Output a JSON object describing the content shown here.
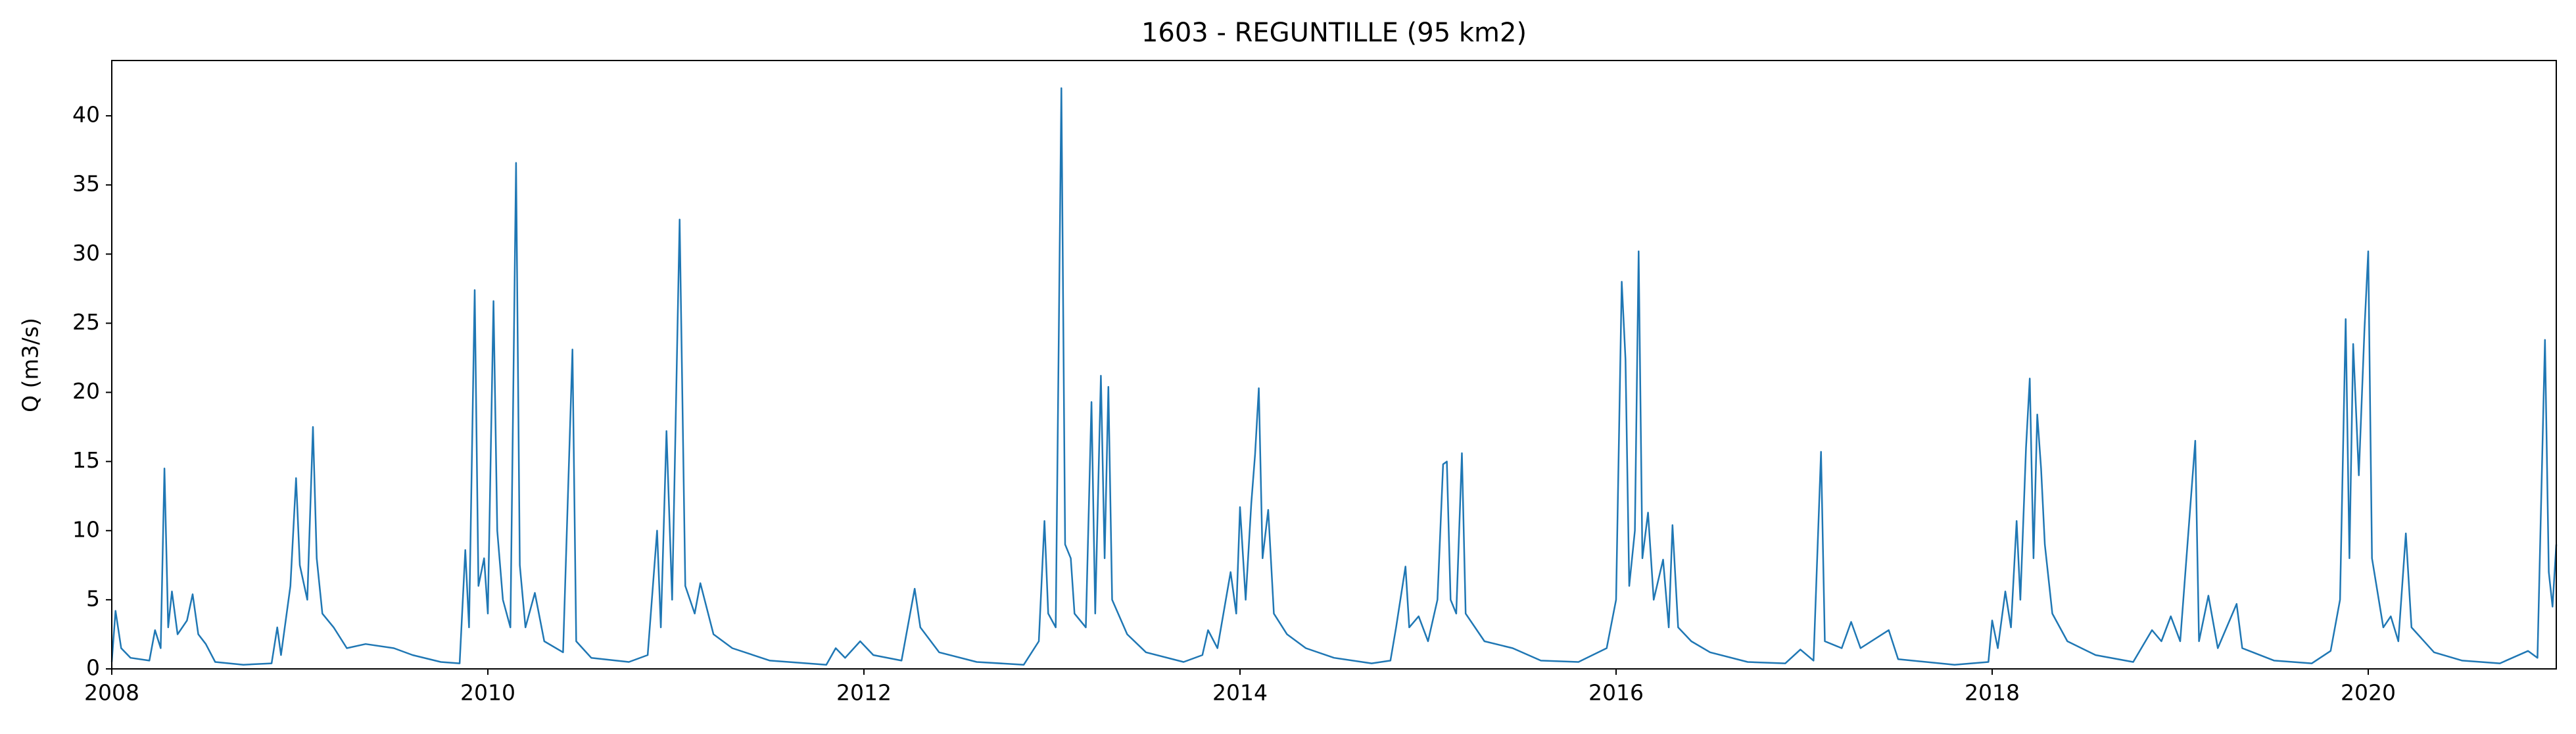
{
  "chart_data": {
    "type": "line",
    "title": "1603 - REGUNTILLE (95 km2)",
    "y_label": "Q (m3/s)",
    "color": "#1f77b4",
    "xlim": [
      2008,
      2021
    ],
    "xticks": [
      2008,
      2010,
      2012,
      2014,
      2016,
      2018,
      2020
    ],
    "ylim": [
      0,
      44
    ],
    "yticks": [
      0,
      5,
      10,
      15,
      20,
      25,
      30,
      35,
      40
    ],
    "x": [
      2008.0,
      2008.02,
      2008.05,
      2008.1,
      2008.2,
      2008.23,
      2008.26,
      2008.28,
      2008.3,
      2008.32,
      2008.35,
      2008.4,
      2008.43,
      2008.46,
      2008.5,
      2008.55,
      2008.7,
      2008.85,
      2008.88,
      2008.9,
      2008.95,
      2008.98,
      2009.0,
      2009.04,
      2009.07,
      2009.09,
      2009.12,
      2009.18,
      2009.25,
      2009.35,
      2009.5,
      2009.6,
      2009.75,
      2009.85,
      2009.88,
      2009.9,
      2009.93,
      2009.95,
      2009.98,
      2010.0,
      2010.03,
      2010.05,
      2010.08,
      2010.12,
      2010.15,
      2010.17,
      2010.2,
      2010.25,
      2010.3,
      2010.4,
      2010.45,
      2010.47,
      2010.55,
      2010.75,
      2010.85,
      2010.9,
      2010.92,
      2010.95,
      2010.98,
      2011.02,
      2011.05,
      2011.1,
      2011.13,
      2011.2,
      2011.3,
      2011.5,
      2011.8,
      2011.85,
      2011.9,
      2011.98,
      2012.05,
      2012.2,
      2012.27,
      2012.3,
      2012.4,
      2012.6,
      2012.85,
      2012.93,
      2012.96,
      2012.98,
      2013.02,
      2013.05,
      2013.07,
      2013.1,
      2013.12,
      2013.18,
      2013.21,
      2013.23,
      2013.26,
      2013.28,
      2013.3,
      2013.32,
      2013.4,
      2013.5,
      2013.7,
      2013.8,
      2013.83,
      2013.88,
      2013.95,
      2013.98,
      2014.0,
      2014.03,
      2014.06,
      2014.08,
      2014.1,
      2014.12,
      2014.15,
      2014.18,
      2014.25,
      2014.35,
      2014.5,
      2014.7,
      2014.8,
      2014.83,
      2014.88,
      2014.9,
      2014.95,
      2015.0,
      2015.05,
      2015.08,
      2015.1,
      2015.12,
      2015.15,
      2015.18,
      2015.2,
      2015.3,
      2015.45,
      2015.6,
      2015.8,
      2015.95,
      2016.0,
      2016.03,
      2016.05,
      2016.07,
      2016.1,
      2016.12,
      2016.14,
      2016.17,
      2016.2,
      2016.25,
      2016.28,
      2016.3,
      2016.33,
      2016.4,
      2016.5,
      2016.7,
      2016.9,
      2016.98,
      2017.05,
      2017.09,
      2017.11,
      2017.2,
      2017.25,
      2017.3,
      2017.45,
      2017.5,
      2017.8,
      2017.98,
      2018.0,
      2018.03,
      2018.07,
      2018.1,
      2018.13,
      2018.15,
      2018.18,
      2018.2,
      2018.22,
      2018.24,
      2018.26,
      2018.28,
      2018.32,
      2018.4,
      2018.55,
      2018.75,
      2018.85,
      2018.9,
      2018.95,
      2019.0,
      2019.08,
      2019.1,
      2019.15,
      2019.2,
      2019.3,
      2019.33,
      2019.5,
      2019.7,
      2019.8,
      2019.85,
      2019.88,
      2019.9,
      2019.92,
      2019.95,
      2019.98,
      2020.0,
      2020.02,
      2020.08,
      2020.12,
      2020.16,
      2020.2,
      2020.23,
      2020.35,
      2020.5,
      2020.7,
      2020.85,
      2020.9,
      2020.94,
      2020.96,
      2020.98,
      2021.0
    ],
    "values": [
      0.5,
      4.2,
      1.5,
      0.8,
      0.6,
      2.8,
      1.5,
      14.5,
      3,
      5.6,
      2.5,
      3.5,
      5.4,
      2.5,
      1.8,
      0.5,
      0.3,
      0.4,
      3.0,
      1.0,
      6,
      13.8,
      7.5,
      5,
      17.5,
      8,
      4,
      3,
      1.5,
      1.8,
      1.5,
      1.0,
      0.5,
      0.4,
      8.6,
      3,
      27.4,
      6,
      8,
      4,
      26.6,
      10,
      5,
      3,
      36.6,
      7.5,
      3,
      5.5,
      2,
      1.2,
      23.1,
      2,
      0.8,
      0.5,
      1,
      10,
      3,
      17.2,
      5,
      32.5,
      6,
      4,
      6.2,
      2.5,
      1.5,
      0.6,
      0.3,
      1.5,
      0.8,
      2.0,
      1,
      0.6,
      5.8,
      3,
      1.2,
      0.5,
      0.3,
      2,
      10.7,
      4,
      3,
      42,
      9,
      8,
      4,
      3,
      19.3,
      4,
      21.2,
      8,
      20.4,
      5,
      2.5,
      1.2,
      0.5,
      1,
      2.8,
      1.5,
      7,
      4,
      11.7,
      5,
      12,
      15.5,
      20.3,
      8,
      11.5,
      4,
      2.5,
      1.5,
      0.8,
      0.4,
      0.6,
      3,
      7.4,
      3,
      3.8,
      2,
      5,
      14.8,
      15.0,
      5,
      4,
      15.6,
      4,
      2,
      1.5,
      0.6,
      0.5,
      1.5,
      5,
      28,
      22.4,
      6,
      10,
      30.2,
      8,
      11.3,
      5,
      7.9,
      3,
      10.4,
      3,
      2,
      1.2,
      0.5,
      0.4,
      1.4,
      0.6,
      15.7,
      2,
      1.5,
      3.4,
      1.5,
      2.8,
      0.7,
      0.3,
      0.5,
      3.5,
      1.5,
      5.6,
      3,
      10.7,
      5,
      16,
      21,
      8,
      18.4,
      14.5,
      9,
      4,
      2,
      1,
      0.5,
      2.8,
      2,
      3.8,
      2,
      16.5,
      2,
      5.3,
      1.5,
      4.7,
      1.5,
      0.6,
      0.4,
      1.3,
      5,
      25.3,
      8,
      23.5,
      14,
      24.6,
      30.2,
      8,
      3,
      3.8,
      2,
      9.8,
      3,
      1.2,
      0.6,
      0.4,
      1.3,
      0.8,
      23.8,
      7,
      4.5,
      9.0
    ]
  }
}
